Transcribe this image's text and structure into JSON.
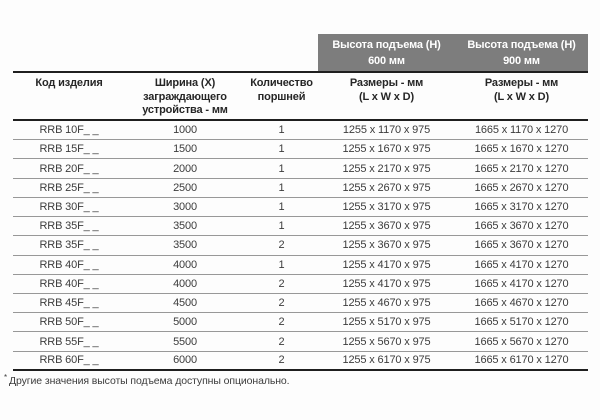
{
  "colors": {
    "band_bg": "#7d7d7d",
    "band_text": "#ffffff",
    "rule_dark": "#1f1f1f",
    "rule_light": "#989898"
  },
  "table": {
    "band": [
      {
        "label": "Высота подъема (H)\n600 мм"
      },
      {
        "label": "Высота подъема (H)\n900 мм"
      }
    ],
    "columns": [
      {
        "label": "Код изделия"
      },
      {
        "label": "Ширина (X)\nзаграждающего\nустройства - мм"
      },
      {
        "label": "Количество\nпоршней"
      },
      {
        "label": "Размеры - мм\n(L x W x D)"
      },
      {
        "label": "Размеры - мм\n(L x W x D)"
      }
    ],
    "rows": [
      {
        "code": "RRB 10F_ _",
        "width": "1000",
        "pistons": "1",
        "dims_600": "1255 x 1170 x 975",
        "dims_900": "1665 x 1170 x 1270"
      },
      {
        "code": "RRB 15F_ _",
        "width": "1500",
        "pistons": "1",
        "dims_600": "1255 x 1670 x 975",
        "dims_900": "1665 x 1670 x 1270"
      },
      {
        "code": "RRB 20F_ _",
        "width": "2000",
        "pistons": "1",
        "dims_600": "1255 x 2170 x 975",
        "dims_900": "1665 x 2170 x 1270"
      },
      {
        "code": "RRB 25F_ _",
        "width": "2500",
        "pistons": "1",
        "dims_600": "1255 x 2670 x 975",
        "dims_900": "1665 x 2670 x 1270"
      },
      {
        "code": "RRB 30F_ _",
        "width": "3000",
        "pistons": "1",
        "dims_600": "1255 x 3170 x 975",
        "dims_900": "1665 x 3170 x 1270"
      },
      {
        "code": "RRB 35F_ _",
        "width": "3500",
        "pistons": "1",
        "dims_600": "1255 x 3670 x 975",
        "dims_900": "1665 x 3670 x 1270"
      },
      {
        "code": "RRB 35F_ _",
        "width": "3500",
        "pistons": "2",
        "dims_600": "1255 x 3670 x 975",
        "dims_900": "1665 x 3670 x 1270"
      },
      {
        "code": "RRB 40F_ _",
        "width": "4000",
        "pistons": "1",
        "dims_600": "1255 x 4170 x 975",
        "dims_900": "1665 x 4170 x 1270"
      },
      {
        "code": "RRB 40F_ _",
        "width": "4000",
        "pistons": "2",
        "dims_600": "1255 x 4170 x 975",
        "dims_900": "1665 x 4170 x 1270"
      },
      {
        "code": "RRB 45F_ _",
        "width": "4500",
        "pistons": "2",
        "dims_600": "1255 x 4670 x 975",
        "dims_900": "1665 x 4670 x 1270"
      },
      {
        "code": "RRB 50F_ _",
        "width": "5000",
        "pistons": "2",
        "dims_600": "1255 x 5170 x 975",
        "dims_900": "1665 x 5170 x 1270"
      },
      {
        "code": "RRB 55F_ _",
        "width": "5500",
        "pistons": "2",
        "dims_600": "1255 x 5670 x 975",
        "dims_900": "1665 x 5670 x 1270"
      },
      {
        "code": "RRB 60F_ _",
        "width": "6000",
        "pistons": "2",
        "dims_600": "1255 x 6170 x 975",
        "dims_900": "1665 x 6170 x 1270"
      }
    ]
  },
  "footnote": {
    "marker": "*",
    "text": "Другие значения высоты подъема доступны опционально."
  }
}
